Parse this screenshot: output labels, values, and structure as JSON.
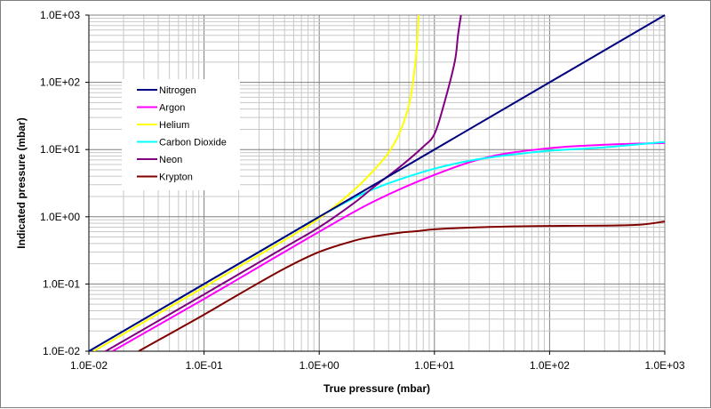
{
  "chart_data": {
    "type": "line",
    "title": "",
    "xlabel": "True pressure (mbar)",
    "ylabel": "Indicated pressure (mbar)",
    "xscale": "log",
    "yscale": "log",
    "xlim": [
      0.01,
      1000
    ],
    "ylim": [
      0.01,
      1000
    ],
    "x_tick_labels": [
      "1.0E-02",
      "1.0E-01",
      "1.0E+00",
      "1.0E+01",
      "1.0E+02",
      "1.0E+03"
    ],
    "y_tick_labels": [
      "1.0E-02",
      "1.0E-01",
      "1.0E+00",
      "1.0E+01",
      "1.0E+02",
      "1.0E+03"
    ],
    "grid": true,
    "legend_position": "upper-left-inside",
    "series": [
      {
        "name": "Nitrogen",
        "color": "#000080",
        "x": [
          0.01,
          1000
        ],
        "y": [
          0.01,
          1000
        ]
      },
      {
        "name": "Argon",
        "color": "#ff00ff",
        "x": [
          0.016,
          0.1,
          0.3,
          1,
          3,
          10,
          30,
          100,
          300,
          1000
        ],
        "y": [
          0.01,
          0.06,
          0.18,
          0.6,
          1.7,
          4.2,
          7.8,
          10.5,
          11.8,
          12.5
        ]
      },
      {
        "name": "Helium",
        "color": "#ffff00",
        "x": [
          0.011,
          0.1,
          0.5,
          1,
          2,
          3,
          4,
          5,
          6,
          6.5,
          7,
          7.3
        ],
        "y": [
          0.01,
          0.09,
          0.45,
          0.95,
          2.5,
          5,
          9,
          18,
          45,
          100,
          300,
          1000
        ]
      },
      {
        "name": "Carbon Dioxide",
        "color": "#00ffff",
        "x": [
          0.01,
          0.1,
          0.5,
          1,
          2,
          3,
          5,
          10,
          20,
          30,
          50,
          100,
          300,
          1000
        ],
        "y": [
          0.01,
          0.1,
          0.5,
          1.0,
          1.9,
          2.6,
          3.6,
          5.2,
          6.8,
          7.6,
          8.5,
          9.6,
          10.8,
          13
        ]
      },
      {
        "name": "Neon",
        "color": "#800080",
        "x": [
          0.014,
          0.1,
          0.5,
          1,
          2,
          3,
          5,
          8,
          10,
          12,
          15,
          16,
          17
        ],
        "y": [
          0.01,
          0.07,
          0.35,
          0.7,
          1.6,
          2.8,
          5.5,
          11,
          17,
          45,
          200,
          500,
          1000
        ]
      },
      {
        "name": "Krypton",
        "color": "#800000",
        "x": [
          0.027,
          0.05,
          0.1,
          0.2,
          0.5,
          1,
          2,
          3,
          5,
          7,
          10,
          20,
          50,
          100,
          300,
          600,
          1000
        ],
        "y": [
          0.01,
          0.018,
          0.035,
          0.07,
          0.17,
          0.3,
          0.44,
          0.51,
          0.58,
          0.61,
          0.65,
          0.69,
          0.72,
          0.73,
          0.74,
          0.76,
          0.85
        ]
      }
    ]
  }
}
